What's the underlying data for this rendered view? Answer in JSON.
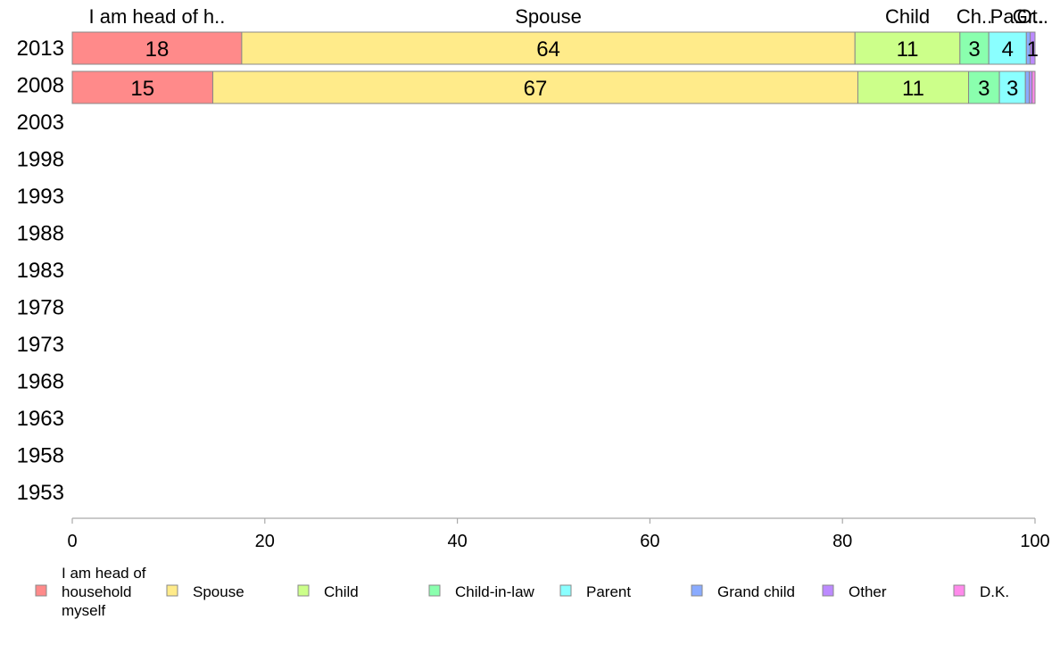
{
  "chart_data": {
    "type": "bar",
    "orientation": "horizontal",
    "stacked": true,
    "years": [
      "2013",
      "2008",
      "2003",
      "1998",
      "1993",
      "1988",
      "1983",
      "1978",
      "1973",
      "1968",
      "1963",
      "1958",
      "1953"
    ],
    "category_labels_top": [
      "I am head of h..",
      "Spouse",
      "Child",
      "Ch..",
      "Pa..",
      "Gr..",
      "Ot.."
    ],
    "series": [
      {
        "name": "I am head of household myself",
        "legend_lines": [
          "I am head of",
          "household",
          "myself"
        ],
        "color": "#FF8A8A",
        "values": [
          17.6,
          14.6
        ]
      },
      {
        "name": "Spouse",
        "legend_lines": [
          "Spouse"
        ],
        "color": "#FFEB8A",
        "values": [
          63.7,
          67.0
        ]
      },
      {
        "name": "Child",
        "legend_lines": [
          "Child"
        ],
        "color": "#CCFF8A",
        "values": [
          10.9,
          11.5
        ]
      },
      {
        "name": "Child-in-law",
        "legend_lines": [
          "Child-in-law"
        ],
        "color": "#8AFFAE",
        "values": [
          3.0,
          3.2
        ]
      },
      {
        "name": "Parent",
        "legend_lines": [
          "Parent"
        ],
        "color": "#8AFFFF",
        "values": [
          3.9,
          2.7
        ]
      },
      {
        "name": "Grand child",
        "legend_lines": [
          "Grand child"
        ],
        "color": "#8AABFF",
        "values": [
          0.4,
          0.4
        ]
      },
      {
        "name": "Other",
        "legend_lines": [
          "Other"
        ],
        "color": "#BC8AFF",
        "values": [
          0.5,
          0.3
        ]
      },
      {
        "name": "D.K.",
        "legend_lines": [
          "D.K."
        ],
        "color": "#FF8AEB",
        "values": [
          0.0,
          0.3
        ]
      }
    ],
    "data_labels": [
      [
        "18",
        "64",
        "11",
        "3",
        "4",
        "",
        "1",
        ""
      ],
      [
        "15",
        "67",
        "11",
        "3",
        "3",
        "",
        "",
        ""
      ]
    ],
    "xlim": [
      0,
      100
    ],
    "xticks": [
      "0",
      "20",
      "40",
      "60",
      "80",
      "100"
    ],
    "grid": false,
    "legend_position": "bottom"
  }
}
